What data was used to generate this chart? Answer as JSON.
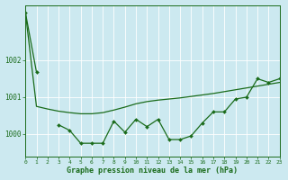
{
  "xlabel": "Graphe pression niveau de la mer (hPa)",
  "bg_color": "#cce9f0",
  "grid_color": "#b0d8e0",
  "line_color": "#1a6b1a",
  "xlim": [
    0,
    23
  ],
  "ylim": [
    999.4,
    1003.5
  ],
  "yticks": [
    1000,
    1001,
    1002
  ],
  "xticks": [
    0,
    1,
    2,
    3,
    4,
    5,
    6,
    7,
    8,
    9,
    10,
    11,
    12,
    13,
    14,
    15,
    16,
    17,
    18,
    19,
    20,
    21,
    22,
    23
  ],
  "smooth_line_x": [
    0,
    1,
    2,
    3,
    4,
    5,
    6,
    7,
    8,
    9,
    10,
    11,
    12,
    13,
    14,
    15,
    16,
    17,
    18,
    19,
    20,
    21,
    22,
    23
  ],
  "smooth_line_y": [
    1003.3,
    1000.75,
    1000.68,
    1000.62,
    1000.58,
    1000.55,
    1000.55,
    1000.58,
    1000.65,
    1000.73,
    1000.82,
    1000.88,
    1000.92,
    1000.95,
    1000.98,
    1001.02,
    1001.06,
    1001.1,
    1001.15,
    1001.2,
    1001.25,
    1001.3,
    1001.35,
    1001.4
  ],
  "marker_line_x": [
    0,
    1,
    2,
    3,
    4,
    5,
    6,
    7,
    8,
    9,
    10,
    11,
    12,
    13,
    14,
    15,
    16,
    17,
    18,
    19,
    20,
    21,
    22,
    23
  ],
  "marker_line_y": [
    1003.3,
    1001.68,
    null,
    1000.25,
    1000.1,
    999.75,
    999.75,
    999.75,
    1000.35,
    1000.05,
    1000.4,
    1000.2,
    1000.4,
    999.85,
    999.85,
    999.95,
    1000.3,
    1000.6,
    1000.6,
    1000.95,
    1001.0,
    1001.5,
    1001.4,
    1001.5
  ]
}
